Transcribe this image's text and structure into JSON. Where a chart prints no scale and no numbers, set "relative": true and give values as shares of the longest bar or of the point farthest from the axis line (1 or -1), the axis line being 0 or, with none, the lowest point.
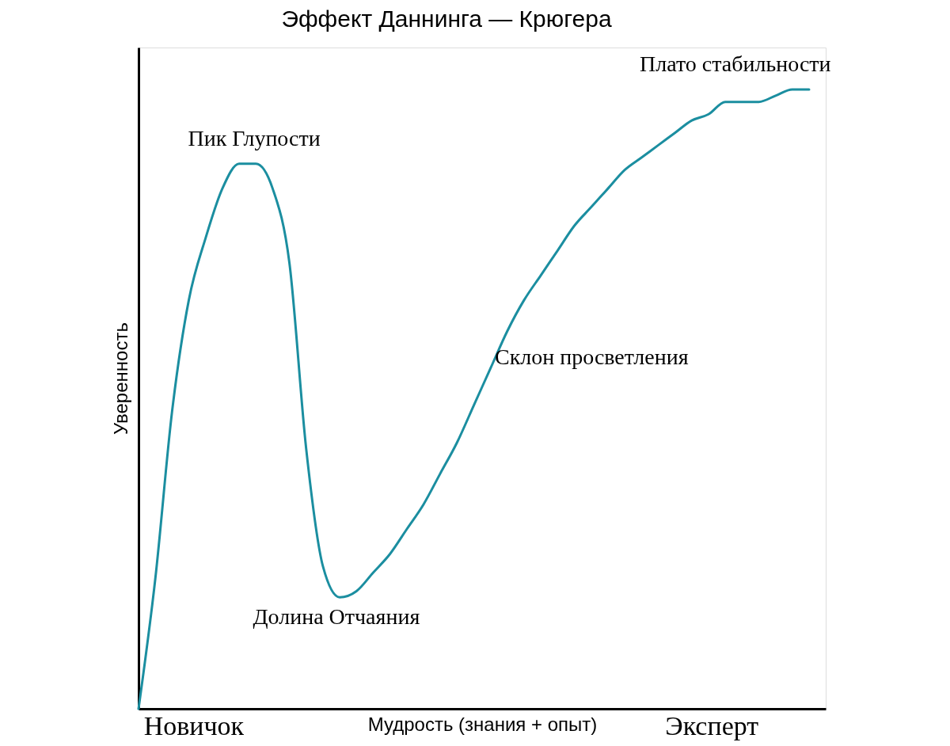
{
  "chart_data": {
    "type": "line",
    "relative": true,
    "title": "Эффект Даннинга — Крюгера",
    "xlabel": "Мудрость (знания + опыт)",
    "ylabel": "Уверенность",
    "categories": [
      null,
      null,
      null,
      null,
      null,
      null,
      null,
      null,
      null,
      null,
      null,
      null,
      null,
      null,
      null,
      null,
      null,
      null,
      null,
      null,
      null,
      null,
      null,
      null,
      null,
      null,
      null,
      null,
      null,
      null,
      null,
      null,
      null,
      null,
      null,
      null,
      null,
      null,
      null,
      null,
      null
    ],
    "series": [
      {
        "color": "#1b8ea0",
        "values": [
          0,
          0.21,
          0.48,
          0.66,
          0.76,
          0.84,
          0.88,
          0.88,
          0.84,
          0.72,
          0.42,
          0.23,
          0.18,
          0.19,
          0.22,
          0.25,
          0.29,
          0.33,
          0.38,
          0.43,
          0.49,
          0.55,
          0.61,
          0.66,
          0.7,
          0.74,
          0.78,
          0.81,
          0.84,
          0.87,
          0.89,
          0.91,
          0.93,
          0.95,
          0.96,
          0.98,
          0.98,
          0.98,
          0.99,
          1.0,
          1.0
        ]
      }
    ],
    "annotations": [
      "Пик Глупости",
      "Долина Отчаяния",
      "Склон просветления",
      "Плато стабильности",
      "Новичок",
      "Эксперт"
    ],
    "grid": false,
    "marker": "none",
    "line_style": "solid"
  }
}
